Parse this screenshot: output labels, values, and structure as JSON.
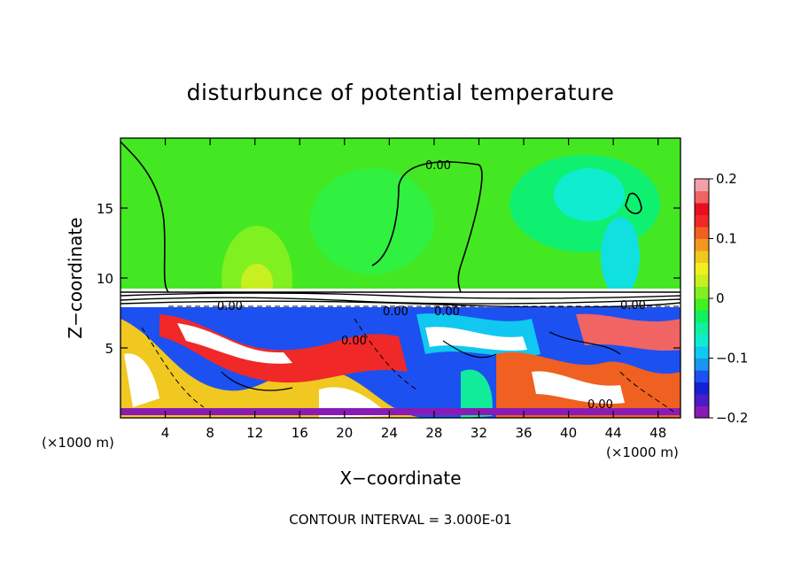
{
  "chart_data": {
    "type": "heatmap",
    "title": "disturbunce of potential temperature",
    "xlabel": "X−coordinate",
    "ylabel": "Z−coordinate",
    "x_unit": "(×1000 m)",
    "y_unit": "(×1000 m)",
    "xlim": [
      0,
      50
    ],
    "ylim": [
      0,
      20
    ],
    "x_ticks": [
      4,
      8,
      12,
      16,
      20,
      24,
      28,
      32,
      36,
      40,
      44,
      48
    ],
    "y_ticks": [
      5,
      10,
      15
    ],
    "colorbar": {
      "min": -0.2,
      "max": 0.2,
      "tick_values": [
        0.2,
        0.1,
        0,
        -0.1,
        -0.2
      ],
      "tick_labels": [
        "0.2",
        "0.1",
        "0",
        "−0.1",
        "−0.2"
      ],
      "colors": [
        "#8a1ab5",
        "#4b1cc8",
        "#1520d6",
        "#1d50f0",
        "#1896f0",
        "#10c8f0",
        "#10ecd0",
        "#10f0a0",
        "#10f060",
        "#40f020",
        "#80f020",
        "#c8f020",
        "#f0f020",
        "#f0c820",
        "#f09820",
        "#f06020",
        "#f02828",
        "#e81020",
        "#f06464",
        "#f4a0a8"
      ]
    },
    "contour_label": "0.00",
    "contour_interval_text": "CONTOUR INTERVAL = 3.000E-01"
  }
}
